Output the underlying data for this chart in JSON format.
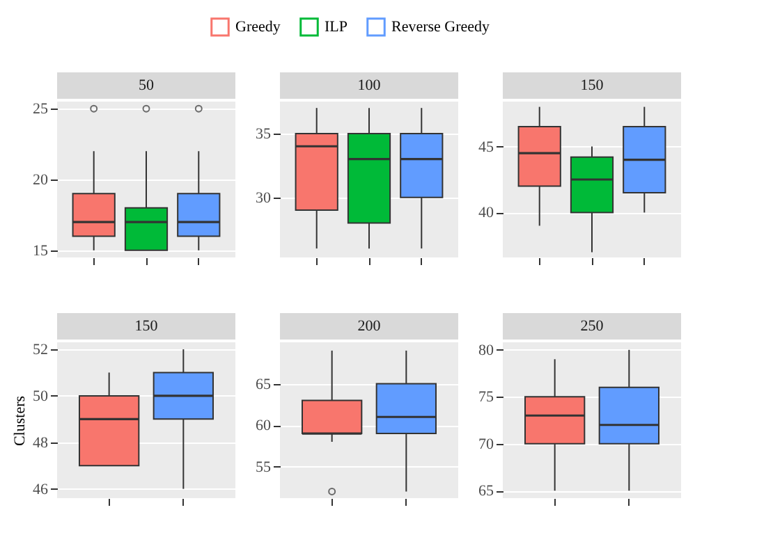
{
  "chart_data": [
    {
      "type": "box",
      "title": "50",
      "categories": [
        null,
        null,
        null
      ],
      "ylim": [
        14.5,
        25.5
      ],
      "yticks": [
        15,
        20,
        25
      ],
      "grid": true,
      "legend": "top",
      "series": [
        {
          "name": "Greedy",
          "color": "#f8766d",
          "boxes": [
            {
              "low": 15,
              "q1": 16,
              "median": 17,
              "q3": 19,
              "high": 22,
              "outliers": [
                25
              ]
            },
            null,
            null
          ]
        },
        {
          "name": "ILP",
          "color": "#00ba38",
          "boxes": [
            null,
            {
              "low": 15,
              "q1": 15,
              "median": 17,
              "q3": 18,
              "high": 22,
              "outliers": [
                25
              ]
            },
            null
          ]
        },
        {
          "name": "Reverse Greedy",
          "color": "#619cff",
          "boxes": [
            null,
            null,
            {
              "low": 15,
              "q1": 16,
              "median": 17,
              "q3": 19,
              "high": 22,
              "outliers": [
                25
              ]
            }
          ]
        }
      ]
    },
    {
      "type": "box",
      "title": "100",
      "categories": [
        null,
        null,
        null
      ],
      "ylim": [
        25.3,
        37.5
      ],
      "yticks": [
        30,
        35
      ],
      "grid": true,
      "series": [
        {
          "name": "Greedy",
          "color": "#f8766d",
          "boxes": [
            {
              "low": 26,
              "q1": 29,
              "median": 34,
              "q3": 35,
              "high": 37
            },
            null,
            null
          ]
        },
        {
          "name": "ILP",
          "color": "#00ba38",
          "boxes": [
            null,
            {
              "low": 26,
              "q1": 28,
              "median": 33,
              "q3": 35,
              "high": 37
            },
            null
          ]
        },
        {
          "name": "Reverse Greedy",
          "color": "#619cff",
          "boxes": [
            null,
            null,
            {
              "low": 26,
              "q1": 30,
              "median": 33,
              "q3": 35,
              "high": 37
            }
          ]
        }
      ]
    },
    {
      "type": "box",
      "title": "150",
      "categories": [
        null,
        null,
        null
      ],
      "ylim": [
        36.6,
        48.4
      ],
      "yticks": [
        40,
        45
      ],
      "grid": true,
      "series": [
        {
          "name": "Greedy",
          "color": "#f8766d",
          "boxes": [
            {
              "low": 39,
              "q1": 42,
              "median": 44.5,
              "q3": 46.5,
              "high": 48
            },
            null,
            null
          ]
        },
        {
          "name": "ILP",
          "color": "#00ba38",
          "boxes": [
            null,
            {
              "low": 37,
              "q1": 40,
              "median": 42.5,
              "q3": 44.2,
              "high": 45
            },
            null
          ]
        },
        {
          "name": "Reverse Greedy",
          "color": "#619cff",
          "boxes": [
            null,
            null,
            {
              "low": 40,
              "q1": 41.5,
              "median": 44,
              "q3": 46.5,
              "high": 48
            }
          ]
        }
      ]
    },
    {
      "type": "box",
      "title": "150",
      "categories": [
        null,
        null
      ],
      "ylim": [
        45.6,
        52.3
      ],
      "yticks": [
        46,
        48,
        50,
        52
      ],
      "grid": true,
      "ylabel": "Clusters",
      "series": [
        {
          "name": "Greedy",
          "color": "#f8766d",
          "boxes": [
            {
              "low": 47,
              "q1": 47,
              "median": 49,
              "q3": 50,
              "high": 51
            },
            null
          ]
        },
        {
          "name": "Reverse Greedy",
          "color": "#619cff",
          "boxes": [
            null,
            {
              "low": 46,
              "q1": 49,
              "median": 50,
              "q3": 51,
              "high": 52
            }
          ]
        }
      ]
    },
    {
      "type": "box",
      "title": "200",
      "categories": [
        null,
        null
      ],
      "ylim": [
        51.2,
        70
      ],
      "yticks": [
        55,
        60,
        65
      ],
      "grid": true,
      "series": [
        {
          "name": "Greedy",
          "color": "#f8766d",
          "boxes": [
            {
              "low": 58,
              "q1": 59,
              "median": 59,
              "q3": 63,
              "high": 69,
              "outliers": [
                52
              ]
            },
            null
          ]
        },
        {
          "name": "Reverse Greedy",
          "color": "#619cff",
          "boxes": [
            null,
            {
              "low": 52,
              "q1": 59,
              "median": 61,
              "q3": 65,
              "high": 69
            }
          ]
        }
      ]
    },
    {
      "type": "box",
      "title": "250",
      "categories": [
        null,
        null
      ],
      "ylim": [
        64.2,
        80.8
      ],
      "yticks": [
        65,
        70,
        75,
        80
      ],
      "grid": true,
      "series": [
        {
          "name": "Greedy",
          "color": "#f8766d",
          "boxes": [
            {
              "low": 65,
              "q1": 70,
              "median": 73,
              "q3": 75,
              "high": 79
            },
            null
          ]
        },
        {
          "name": "Reverse Greedy",
          "color": "#619cff",
          "boxes": [
            null,
            {
              "low": 65,
              "q1": 70,
              "median": 72,
              "q3": 76,
              "high": 80
            }
          ]
        }
      ]
    }
  ]
}
